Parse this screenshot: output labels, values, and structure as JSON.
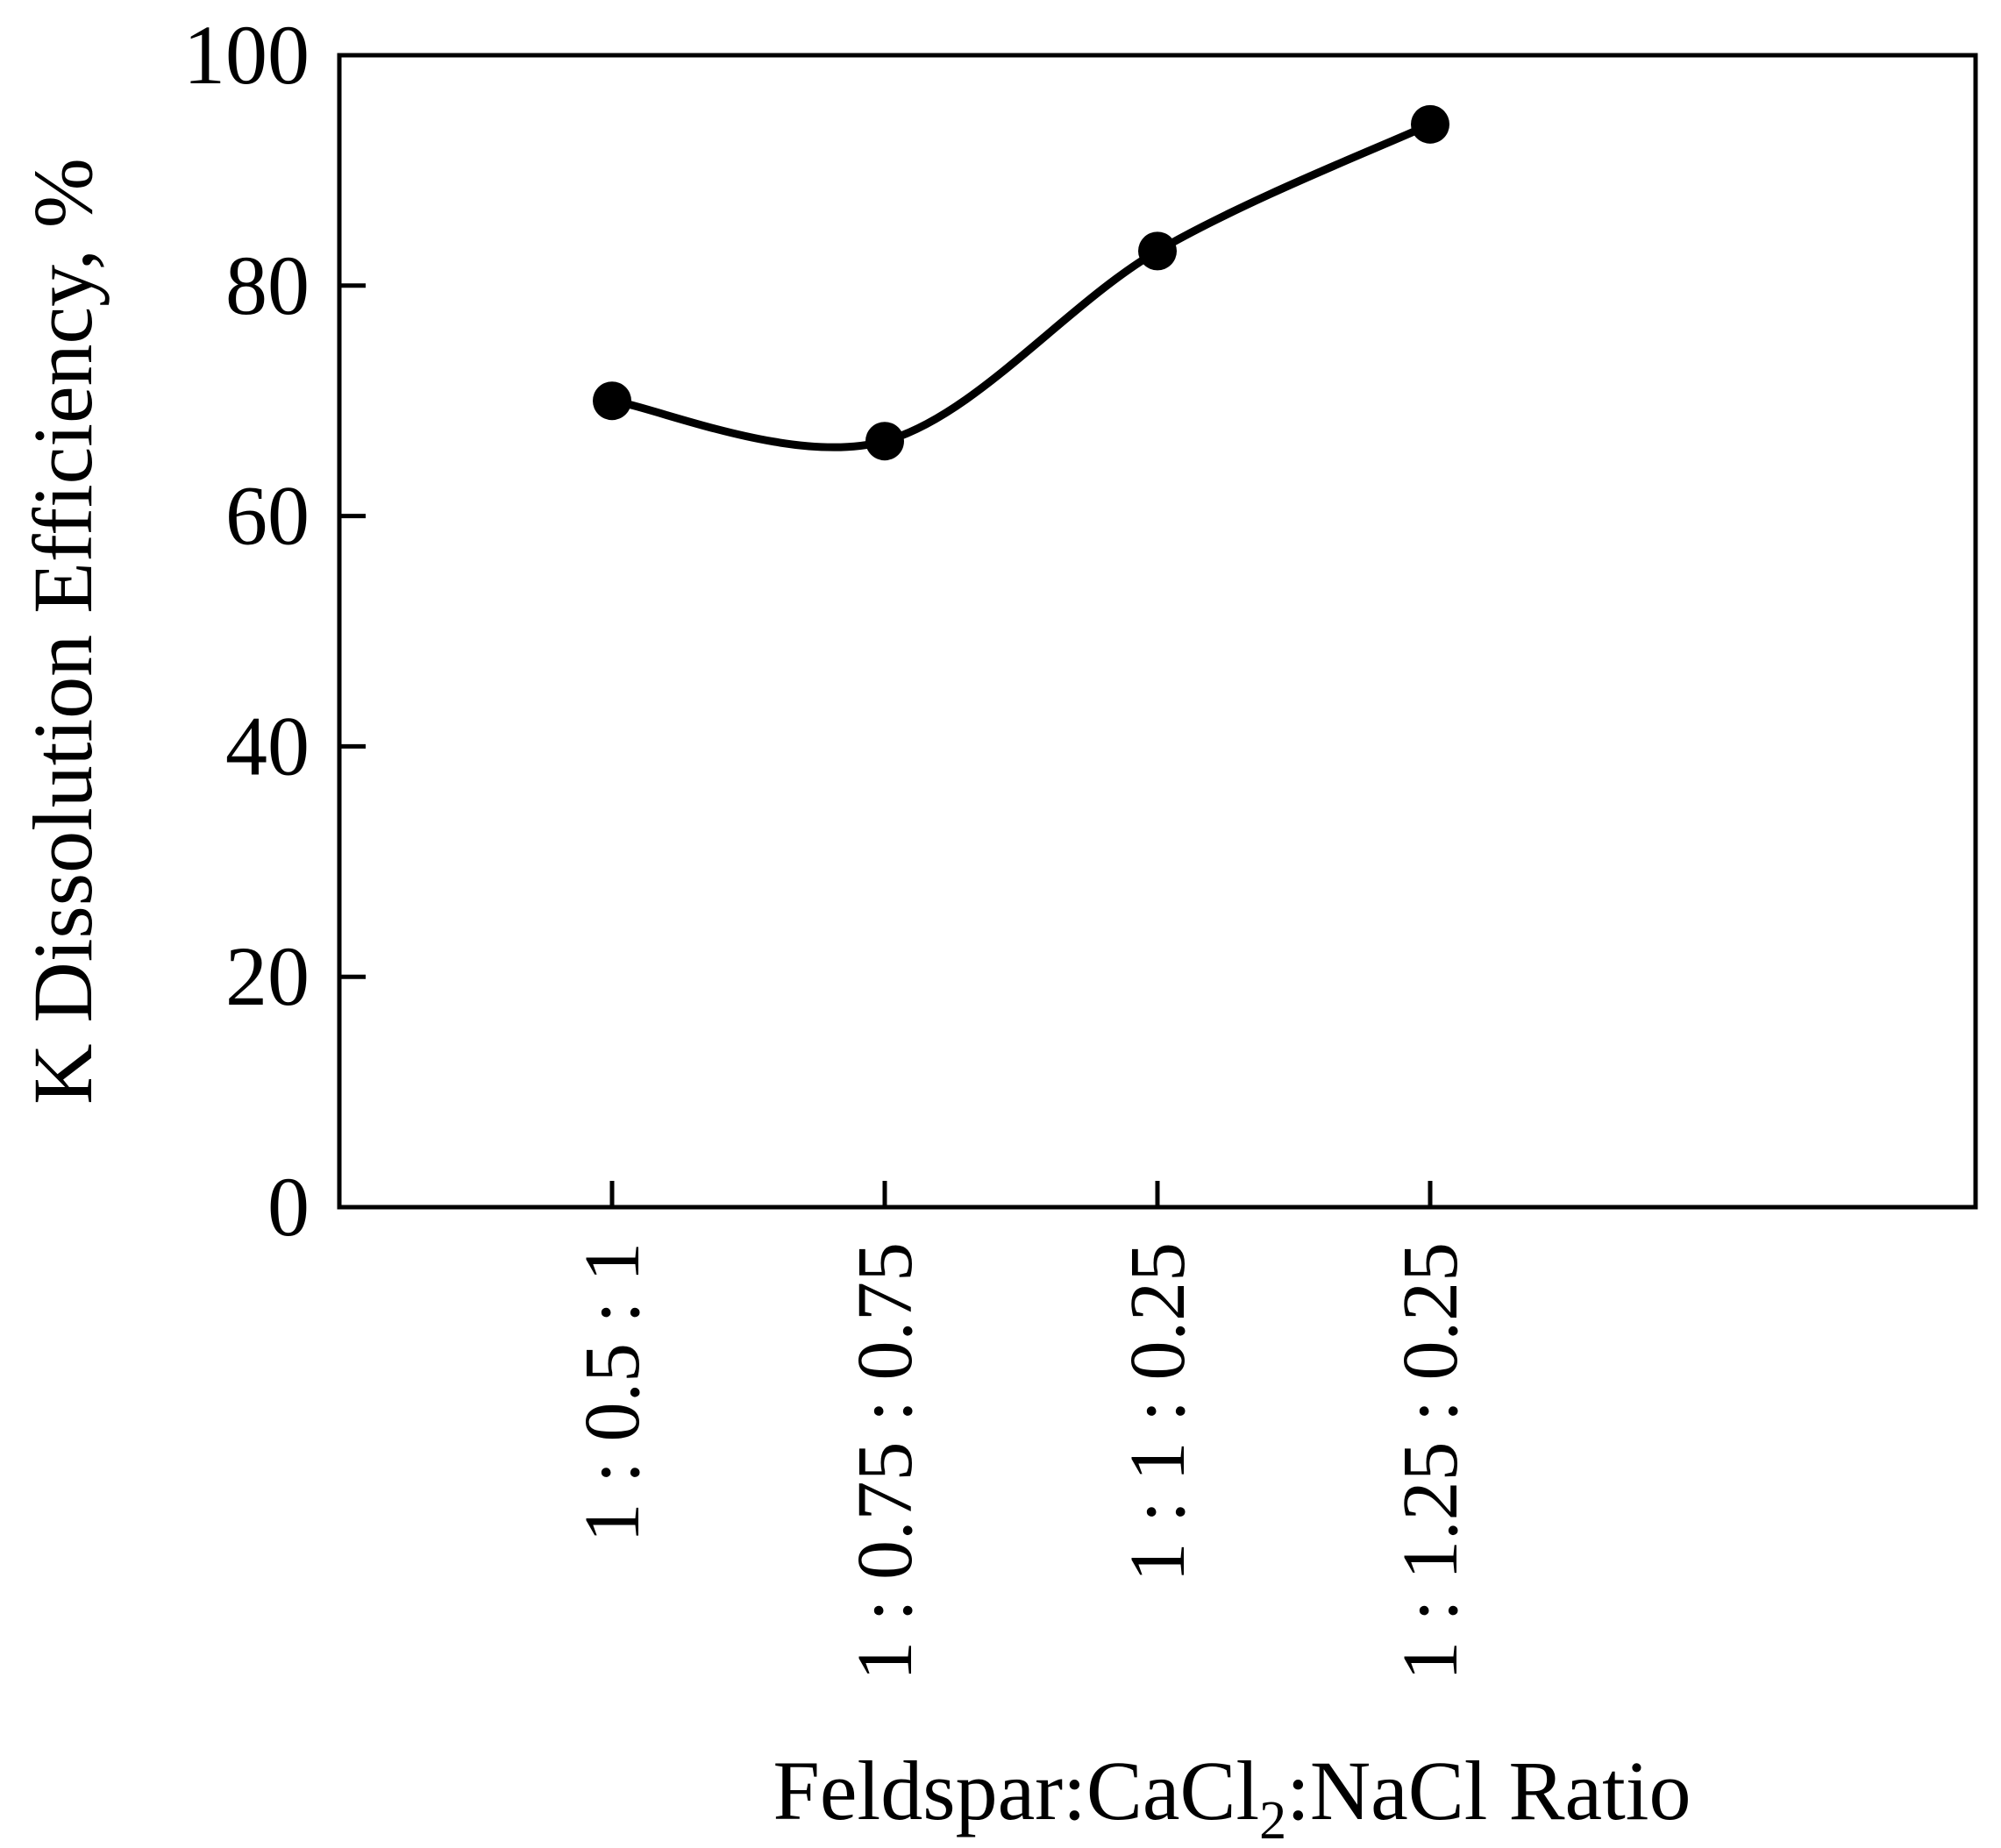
{
  "chart_data": {
    "type": "line",
    "title": "",
    "xlabel": {
      "prefix": "Feldspar:CaCl",
      "subscript": "2",
      "suffix": ":NaCl Ratio"
    },
    "ylabel": "K Dissolution Efficiency, %",
    "categories": [
      "1 : 0.5 : 1",
      "1 : 0.75 : 0.75",
      "1 : 1 : 0.25",
      "1 : 1.25 : 0.25"
    ],
    "series": [
      {
        "values": [
          70,
          66.5,
          83,
          94
        ],
        "color": "#000000",
        "marker": "circle",
        "smooth": true
      }
    ],
    "ylim": [
      0,
      100
    ],
    "yticks": [
      0,
      20,
      40,
      60,
      80,
      100
    ],
    "grid": false,
    "legend": "none"
  }
}
